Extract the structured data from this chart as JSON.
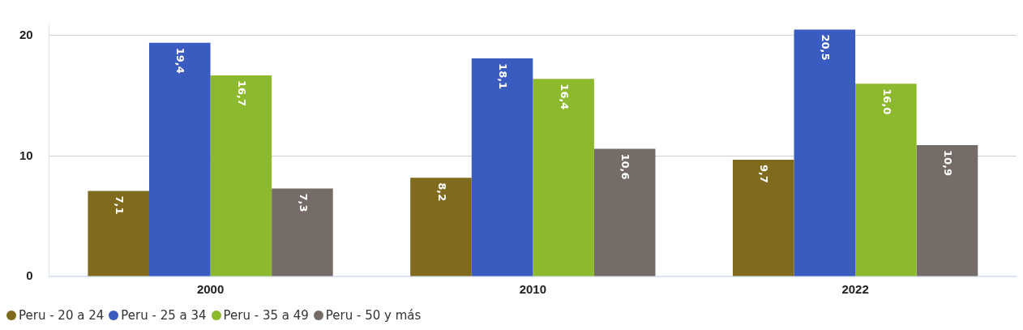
{
  "chart_data": {
    "type": "bar",
    "categories": [
      "2000",
      "2010",
      "2022"
    ],
    "series": [
      {
        "name": "Peru - 20 a 24",
        "color": "#7f6a1e",
        "values": [
          7.1,
          8.2,
          9.7
        ],
        "value_labels": [
          "7,1",
          "8,2",
          "9,7"
        ]
      },
      {
        "name": "Peru - 25 a 34",
        "color": "#3a5bbf",
        "values": [
          19.4,
          18.1,
          20.5
        ],
        "value_labels": [
          "19,4",
          "18,1",
          "20,5"
        ]
      },
      {
        "name": "Peru - 35 a 49",
        "color": "#8db92e",
        "values": [
          16.7,
          16.4,
          16.0
        ],
        "value_labels": [
          "16,7",
          "16,4",
          "16,0"
        ]
      },
      {
        "name": "Peru - 50 y más",
        "color": "#756c67",
        "values": [
          7.3,
          10.6,
          10.9
        ],
        "value_labels": [
          "7,3",
          "10,6",
          "10,9"
        ]
      }
    ],
    "ylim": [
      0,
      21
    ],
    "yticks": [
      0,
      10,
      20
    ],
    "grid": "y",
    "legend": "bottom left"
  }
}
